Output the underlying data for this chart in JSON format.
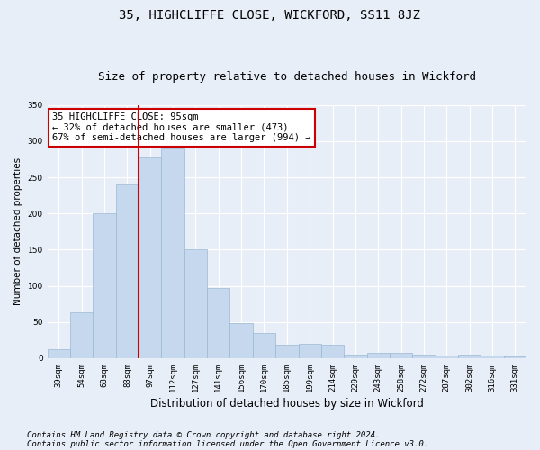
{
  "title": "35, HIGHCLIFFE CLOSE, WICKFORD, SS11 8JZ",
  "subtitle": "Size of property relative to detached houses in Wickford",
  "xlabel": "Distribution of detached houses by size in Wickford",
  "ylabel": "Number of detached properties",
  "categories": [
    "39sqm",
    "54sqm",
    "68sqm",
    "83sqm",
    "97sqm",
    "112sqm",
    "127sqm",
    "141sqm",
    "156sqm",
    "170sqm",
    "185sqm",
    "199sqm",
    "214sqm",
    "229sqm",
    "243sqm",
    "258sqm",
    "272sqm",
    "287sqm",
    "302sqm",
    "316sqm",
    "331sqm"
  ],
  "values": [
    12,
    63,
    200,
    240,
    278,
    290,
    150,
    97,
    48,
    35,
    18,
    20,
    18,
    5,
    8,
    7,
    5,
    4,
    5,
    4,
    3
  ],
  "bar_color": "#c5d8ed",
  "bar_edge_color": "#9ab8d4",
  "bar_width": 1.0,
  "vline_color": "#cc0000",
  "vline_pos": 3.5,
  "ylim": [
    0,
    350
  ],
  "yticks": [
    0,
    50,
    100,
    150,
    200,
    250,
    300,
    350
  ],
  "annotation_text": "35 HIGHCLIFFE CLOSE: 95sqm\n← 32% of detached houses are smaller (473)\n67% of semi-detached houses are larger (994) →",
  "annotation_box_facecolor": "#ffffff",
  "annotation_box_edgecolor": "#cc0000",
  "bg_color": "#e8eef7",
  "plot_bg_color": "#e8eef7",
  "footer1": "Contains HM Land Registry data © Crown copyright and database right 2024.",
  "footer2": "Contains public sector information licensed under the Open Government Licence v3.0.",
  "title_fontsize": 10,
  "subtitle_fontsize": 9,
  "xlabel_fontsize": 8.5,
  "ylabel_fontsize": 7.5,
  "tick_fontsize": 6.5,
  "annotation_fontsize": 7.5,
  "footer_fontsize": 6.5,
  "grid_color": "#ffffff",
  "grid_linewidth": 0.8
}
